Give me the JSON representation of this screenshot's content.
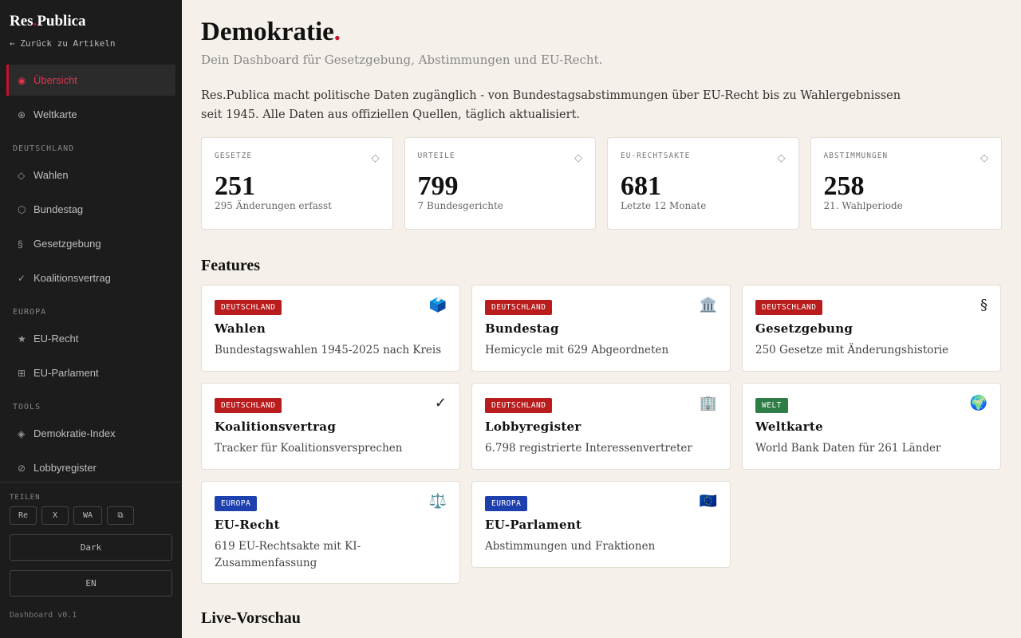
{
  "sidebar": {
    "brand": {
      "pre": "Res",
      "dot": ".",
      "post": "Publica"
    },
    "back": "← Zurück zu Artikeln",
    "nav": [
      {
        "icon": "◉",
        "label": "Übersicht",
        "active": true
      },
      {
        "icon": "⊕",
        "label": "Weltkarte"
      }
    ],
    "sections": [
      {
        "title": "DEUTSCHLAND",
        "items": [
          {
            "icon": "◇",
            "label": "Wahlen"
          },
          {
            "icon": "⬡",
            "label": "Bundestag"
          },
          {
            "icon": "§",
            "label": "Gesetzgebung"
          },
          {
            "icon": "✓",
            "label": "Koalitionsvertrag"
          }
        ]
      },
      {
        "title": "EUROPA",
        "items": [
          {
            "icon": "★",
            "label": "EU-Recht"
          },
          {
            "icon": "⊞",
            "label": "EU-Parlament"
          }
        ]
      },
      {
        "title": "TOOLS",
        "items": [
          {
            "icon": "◈",
            "label": "Demokratie-Index"
          },
          {
            "icon": "⊘",
            "label": "Lobbyregister"
          }
        ]
      }
    ],
    "share": {
      "label": "TEILEN",
      "buttons": [
        "Re",
        "X",
        "WA",
        "⧉"
      ]
    },
    "theme": "Dark",
    "lang": "EN",
    "version": "Dashboard v0.1"
  },
  "header": {
    "title": "Demokratie",
    "title_dot": ".",
    "subtitle": "Dein Dashboard für Gesetzgebung, Abstimmungen und EU-Recht."
  },
  "intro": "Res.Publica macht politische Daten zugänglich - von Bundestagsabstimmungen über EU-Recht bis zu Wahlergebnissen seit 1945. Alle Daten aus offiziellen Quellen, täglich aktualisiert.",
  "stats": [
    {
      "label": "GESETZE",
      "icon": "◇",
      "value": 251,
      "note": "295 Änderungen erfasst"
    },
    {
      "label": "URTEILE",
      "icon": "◇",
      "value": 799,
      "note": "7 Bundesgerichte"
    },
    {
      "label": "EU-RECHTSAKTE",
      "icon": "◇",
      "value": 681,
      "note": "Letzte 12 Monate"
    },
    {
      "label": "ABSTIMMUNGEN",
      "icon": "◇",
      "value": 258,
      "note": "21. Wahlperiode"
    }
  ],
  "features": {
    "heading": "Features",
    "cards": [
      {
        "tag": "DEUTSCHLAND",
        "color": "#b91c1c",
        "icon": "🗳️",
        "title": "Wahlen",
        "desc": "Bundestagswahlen 1945-2025 nach Kreis"
      },
      {
        "tag": "DEUTSCHLAND",
        "color": "#b91c1c",
        "icon": "🏛️",
        "title": "Bundestag",
        "desc": "Hemicycle mit 629 Abgeordneten"
      },
      {
        "tag": "DEUTSCHLAND",
        "color": "#b91c1c",
        "icon": "§",
        "title": "Gesetzgebung",
        "desc": "250 Gesetze mit Änderungshistorie"
      },
      {
        "tag": "DEUTSCHLAND",
        "color": "#b91c1c",
        "icon": "✓",
        "title": "Koalitionsvertrag",
        "desc": "Tracker für Koalitionsversprechen"
      },
      {
        "tag": "DEUTSCHLAND",
        "color": "#b91c1c",
        "icon": "🏢",
        "title": "Lobbyregister",
        "desc": "6.798 registrierte Interessenvertreter"
      },
      {
        "tag": "WELT",
        "color": "#2e7d46",
        "icon": "🌍",
        "title": "Weltkarte",
        "desc": "World Bank Daten für 261 Länder"
      },
      {
        "tag": "EUROPA",
        "color": "#1e3fae",
        "icon": "⚖️",
        "title": "EU-Recht",
        "desc": "619 EU-Rechtsakte mit KI-Zusammenfassung"
      },
      {
        "tag": "EUROPA",
        "color": "#1e3fae",
        "icon": "🇪🇺",
        "title": "EU-Parlament",
        "desc": "Abstimmungen und Fraktionen"
      }
    ]
  },
  "preview_heading": "Live-Vorschau"
}
